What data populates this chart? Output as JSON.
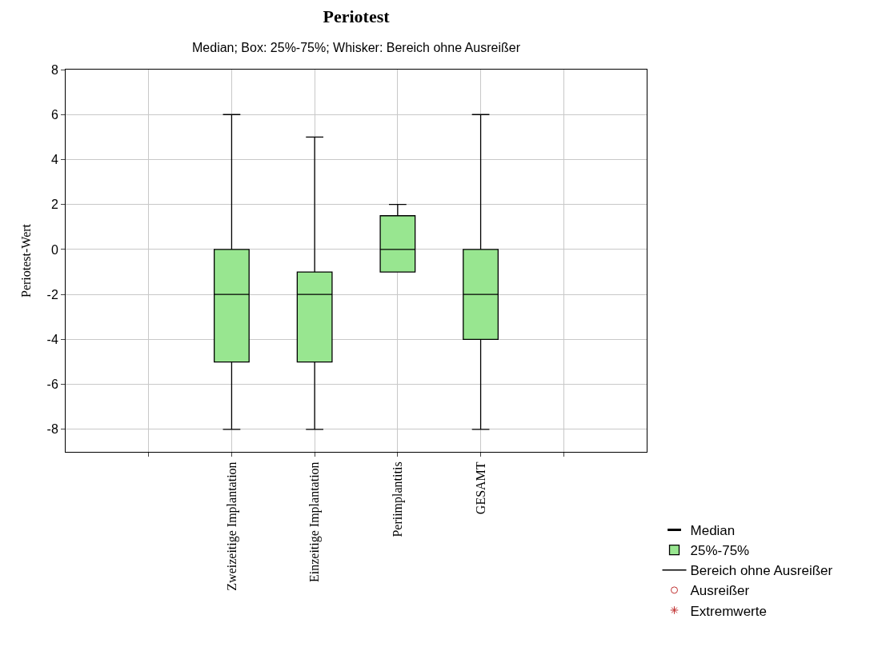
{
  "chart_data": {
    "type": "box",
    "title": "Periotest",
    "subtitle": "Median; Box: 25%-75%; Whisker: Bereich ohne Ausreißer",
    "ylabel": "Periotest-Wert",
    "categories": [
      null,
      "Zweizeitige Implantation",
      "Einzeitige Implantation",
      "Periimplantitis",
      "GESAMT",
      null
    ],
    "annotations": [
      "Median",
      "Bereich ohne Ausreißer"
    ],
    "series": [
      {
        "name": "25%-75%",
        "color": "#98e690",
        "boxes": [
          null,
          {
            "low": -8,
            "q1": -5,
            "median": -2,
            "q3": 0,
            "high": 6
          },
          {
            "low": -8,
            "q1": -5,
            "median": -2,
            "q3": -1,
            "high": 5
          },
          {
            "low": -1,
            "q1": -1,
            "median": 0,
            "q3": 1.5,
            "high": 2
          },
          {
            "low": -8,
            "q1": -4,
            "median": -2,
            "q3": 0,
            "high": 6
          },
          null
        ]
      },
      {
        "name": "Ausreißer",
        "type": "scatter",
        "marker": "circle",
        "color": "#c03030",
        "values": [
          null,
          null,
          null,
          null,
          null,
          null
        ]
      },
      {
        "name": "Extremwerte",
        "type": "scatter",
        "marker": "star",
        "color": "#c03030",
        "values": [
          null,
          null,
          null,
          null,
          null,
          null
        ]
      }
    ],
    "ylim": [
      -9,
      8
    ],
    "yticks": [
      -8,
      -6,
      -4,
      -2,
      0,
      2,
      4,
      6,
      8
    ],
    "grid": true,
    "legend": "bottom right"
  }
}
